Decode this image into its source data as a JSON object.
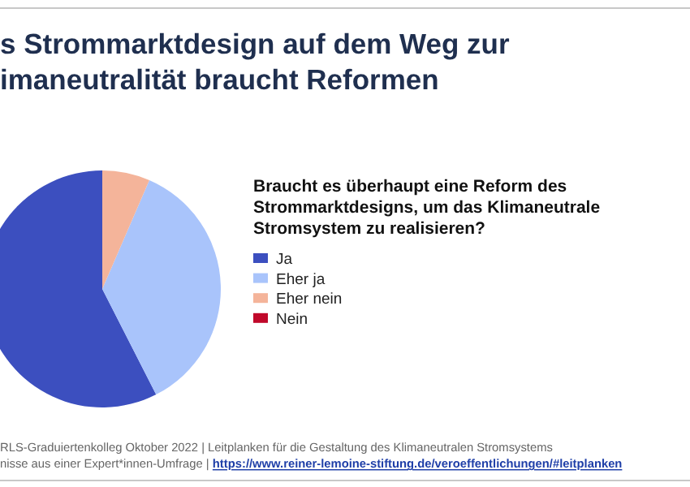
{
  "chart_data": {
    "type": "pie",
    "title": "s Strommarktdesign auf dem Weg zur\nimaneutralität braucht Reformen",
    "legend_title": "Braucht es überhaupt eine Reform des\nStrommarktdesigns, um das Klimaneutrale\nStromsystem zu realisieren?",
    "categories": [
      "Ja",
      "Eher ja",
      "Eher nein",
      "Nein"
    ],
    "values": [
      57.5,
      36,
      6.5,
      0
    ],
    "colors": [
      "#3c4fbf",
      "#a9c4fb",
      "#f4b49a",
      "#c0082a"
    ],
    "legend": "right",
    "annotations": [
      "RLS-Graduiertenkolleg Oktober 2022 | Leitplanken für die Gestaltung des Klimaneutralen Stromsystems",
      "nisse aus einer Expert*innen-Umfrage | https://www.reiner-lemoine-stiftung.de/veroeffentlichungen/#leitplanken"
    ]
  }
}
